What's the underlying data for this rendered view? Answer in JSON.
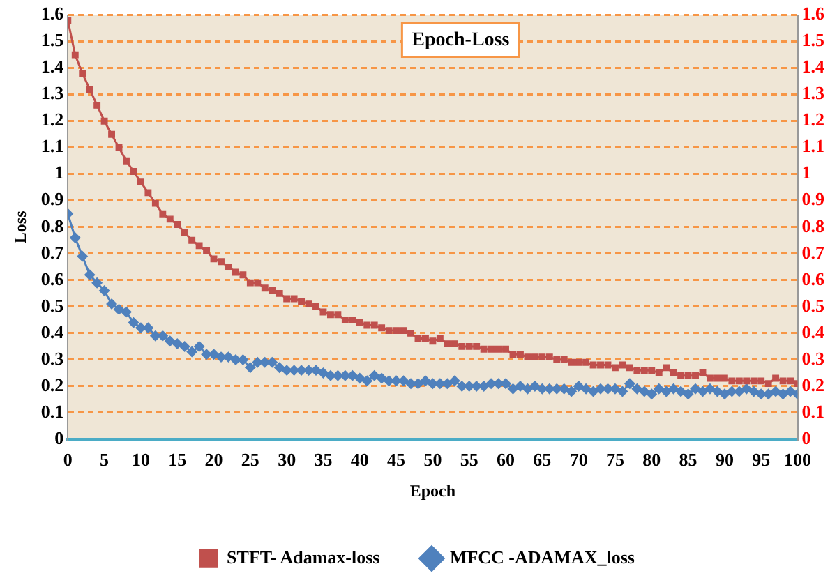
{
  "chart_data": {
    "type": "line",
    "title": "Epoch-Loss",
    "xlabel": "Epoch",
    "ylabel": "Loss",
    "x": [
      0,
      1,
      2,
      3,
      4,
      5,
      6,
      7,
      8,
      9,
      10,
      11,
      12,
      13,
      14,
      15,
      16,
      17,
      18,
      19,
      20,
      21,
      22,
      23,
      24,
      25,
      26,
      27,
      28,
      29,
      30,
      31,
      32,
      33,
      34,
      35,
      36,
      37,
      38,
      39,
      40,
      41,
      42,
      43,
      44,
      45,
      46,
      47,
      48,
      49,
      50,
      51,
      52,
      53,
      54,
      55,
      56,
      57,
      58,
      59,
      60,
      61,
      62,
      63,
      64,
      65,
      66,
      67,
      68,
      69,
      70,
      71,
      72,
      73,
      74,
      75,
      76,
      77,
      78,
      79,
      80,
      81,
      82,
      83,
      84,
      85,
      86,
      87,
      88,
      89,
      90,
      91,
      92,
      93,
      94,
      95,
      96,
      97,
      98,
      99,
      100
    ],
    "series": [
      {
        "name": "STFT- Adamax-loss",
        "color": "#c0504d",
        "marker": "square",
        "values": [
          1.58,
          1.45,
          1.38,
          1.32,
          1.26,
          1.2,
          1.15,
          1.1,
          1.05,
          1.01,
          0.97,
          0.93,
          0.89,
          0.85,
          0.83,
          0.81,
          0.78,
          0.75,
          0.73,
          0.71,
          0.68,
          0.67,
          0.65,
          0.63,
          0.62,
          0.59,
          0.59,
          0.57,
          0.56,
          0.55,
          0.53,
          0.53,
          0.52,
          0.51,
          0.5,
          0.48,
          0.47,
          0.47,
          0.45,
          0.45,
          0.44,
          0.43,
          0.43,
          0.42,
          0.41,
          0.41,
          0.41,
          0.4,
          0.38,
          0.38,
          0.37,
          0.38,
          0.36,
          0.36,
          0.35,
          0.35,
          0.35,
          0.34,
          0.34,
          0.34,
          0.34,
          0.32,
          0.32,
          0.31,
          0.31,
          0.31,
          0.31,
          0.3,
          0.3,
          0.29,
          0.29,
          0.29,
          0.28,
          0.28,
          0.28,
          0.27,
          0.28,
          0.27,
          0.26,
          0.26,
          0.26,
          0.25,
          0.27,
          0.25,
          0.24,
          0.24,
          0.24,
          0.25,
          0.23,
          0.23,
          0.23,
          0.22,
          0.22,
          0.22,
          0.22,
          0.22,
          0.21,
          0.23,
          0.22,
          0.22,
          0.21
        ]
      },
      {
        "name": "MFCC -ADAMAX_loss",
        "color": "#4f81bd",
        "marker": "diamond",
        "values": [
          0.85,
          0.76,
          0.69,
          0.62,
          0.59,
          0.56,
          0.51,
          0.49,
          0.48,
          0.44,
          0.42,
          0.42,
          0.39,
          0.39,
          0.37,
          0.36,
          0.35,
          0.33,
          0.35,
          0.32,
          0.32,
          0.31,
          0.31,
          0.3,
          0.3,
          0.27,
          0.29,
          0.29,
          0.29,
          0.27,
          0.26,
          0.26,
          0.26,
          0.26,
          0.26,
          0.25,
          0.24,
          0.24,
          0.24,
          0.24,
          0.23,
          0.22,
          0.24,
          0.23,
          0.22,
          0.22,
          0.22,
          0.21,
          0.21,
          0.22,
          0.21,
          0.21,
          0.21,
          0.22,
          0.2,
          0.2,
          0.2,
          0.2,
          0.21,
          0.21,
          0.21,
          0.19,
          0.2,
          0.19,
          0.2,
          0.19,
          0.19,
          0.19,
          0.19,
          0.18,
          0.2,
          0.19,
          0.18,
          0.19,
          0.19,
          0.19,
          0.18,
          0.21,
          0.19,
          0.18,
          0.17,
          0.19,
          0.18,
          0.19,
          0.18,
          0.17,
          0.19,
          0.18,
          0.19,
          0.18,
          0.17,
          0.18,
          0.18,
          0.19,
          0.18,
          0.17,
          0.17,
          0.18,
          0.17,
          0.18,
          0.17
        ]
      }
    ],
    "xlim": [
      0,
      100
    ],
    "xticks": [
      0,
      5,
      10,
      15,
      20,
      25,
      30,
      35,
      40,
      45,
      50,
      55,
      60,
      65,
      70,
      75,
      80,
      85,
      90,
      95,
      100
    ],
    "ylim": [
      0,
      1.6
    ],
    "yticks": [
      0,
      0.1,
      0.2,
      0.3,
      0.4,
      0.5,
      0.6,
      0.7,
      0.8,
      0.9,
      1,
      1.1,
      1.2,
      1.3,
      1.4,
      1.5,
      1.6
    ],
    "y2lim": [
      0,
      1.6
    ],
    "y2ticks": [
      0,
      0.1,
      0.2,
      0.3,
      0.4,
      0.5,
      0.6,
      0.7,
      0.8,
      0.9,
      1,
      1.1,
      1.2,
      1.3,
      1.4,
      1.5,
      1.6
    ],
    "grid": "y",
    "legend": "bottom",
    "line_style": "solid"
  }
}
